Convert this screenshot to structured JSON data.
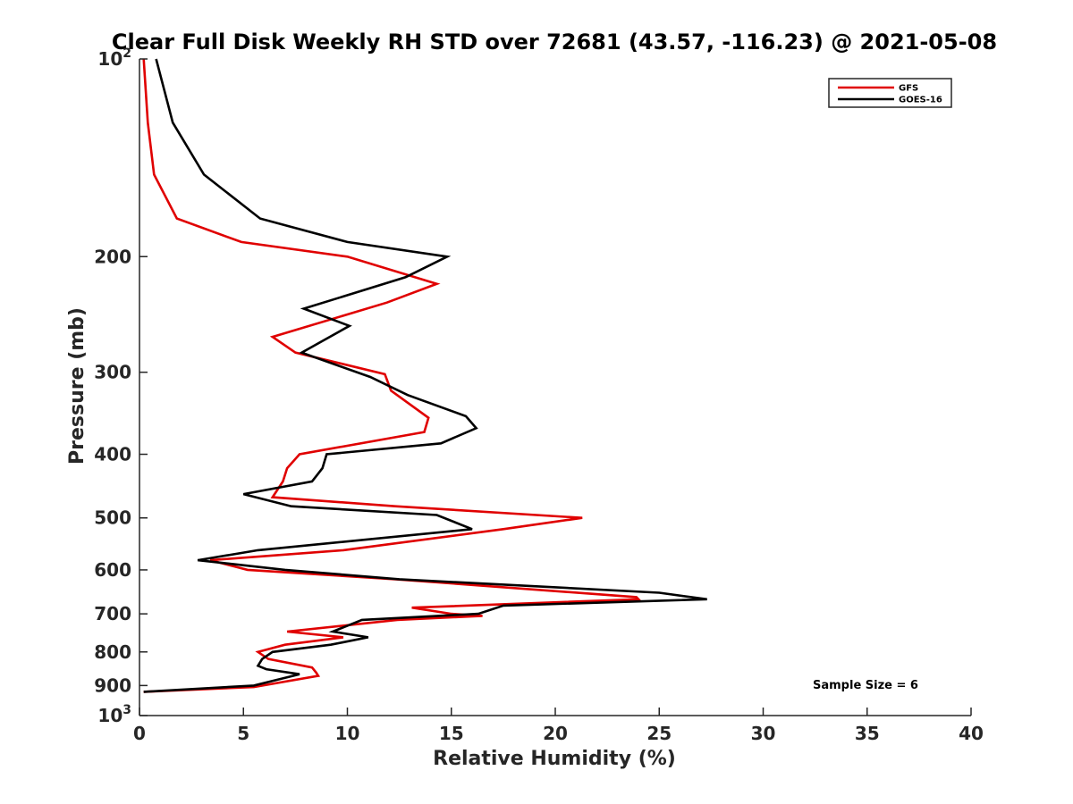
{
  "chart_data": {
    "type": "line",
    "title": "Clear Full Disk Weekly RH STD over 72681 (43.57, -116.23) @ 2021-05-08",
    "xlabel": "Relative Humidity (%)",
    "ylabel": "Pressure (mb)",
    "xlim": [
      0,
      40
    ],
    "ylim": [
      100,
      1000
    ],
    "yscale": "log",
    "y_reversed": true,
    "grid": false,
    "x_ticks": [
      "0",
      "5",
      "10",
      "15",
      "20",
      "25",
      "30",
      "35",
      "40"
    ],
    "y_ticks": [
      {
        "value": 100,
        "base": "10",
        "exp": "2"
      },
      {
        "value": 200,
        "label": "200"
      },
      {
        "value": 300,
        "label": "300"
      },
      {
        "value": 400,
        "label": "400"
      },
      {
        "value": 500,
        "label": "500"
      },
      {
        "value": 600,
        "label": "600"
      },
      {
        "value": 700,
        "label": "700"
      },
      {
        "value": 800,
        "label": "800"
      },
      {
        "value": 900,
        "label": "900"
      },
      {
        "value": 1000,
        "base": "10",
        "exp": "3"
      }
    ],
    "legend_position": "top-right",
    "annotation": "Sample Size = 6",
    "series": [
      {
        "name": "GFS",
        "color": "#e00000",
        "points": [
          [
            0.2,
            100
          ],
          [
            0.4,
            125
          ],
          [
            0.7,
            150
          ],
          [
            1.8,
            175
          ],
          [
            4.9,
            190
          ],
          [
            10.0,
            200
          ],
          [
            14.3,
            220
          ],
          [
            11.9,
            235
          ],
          [
            6.4,
            265
          ],
          [
            7.5,
            280
          ],
          [
            11.8,
            302
          ],
          [
            12.1,
            320
          ],
          [
            13.9,
            352
          ],
          [
            13.7,
            370
          ],
          [
            7.7,
            400
          ],
          [
            7.1,
            420
          ],
          [
            6.9,
            440
          ],
          [
            6.4,
            465
          ],
          [
            12.3,
            480
          ],
          [
            21.3,
            500
          ],
          [
            17.5,
            520
          ],
          [
            9.8,
            560
          ],
          [
            3.4,
            580
          ],
          [
            5.2,
            600
          ],
          [
            12.3,
            620
          ],
          [
            23.9,
            660
          ],
          [
            24.0,
            665
          ],
          [
            13.1,
            685
          ],
          [
            15.0,
            700
          ],
          [
            16.5,
            705
          ],
          [
            12.4,
            715
          ],
          [
            7.1,
            745
          ],
          [
            9.8,
            760
          ],
          [
            7.0,
            780
          ],
          [
            5.7,
            800
          ],
          [
            6.2,
            820
          ],
          [
            8.3,
            845
          ],
          [
            8.5,
            860
          ],
          [
            8.6,
            870
          ],
          [
            5.5,
            905
          ],
          [
            0.2,
            920
          ]
        ]
      },
      {
        "name": "GOES-16",
        "color": "#000000",
        "points": [
          [
            0.8,
            100
          ],
          [
            1.6,
            125
          ],
          [
            3.1,
            150
          ],
          [
            5.8,
            175
          ],
          [
            10.0,
            190
          ],
          [
            14.8,
            200
          ],
          [
            12.8,
            215
          ],
          [
            7.9,
            240
          ],
          [
            10.1,
            255
          ],
          [
            7.8,
            280
          ],
          [
            11.1,
            305
          ],
          [
            12.9,
            325
          ],
          [
            15.7,
            350
          ],
          [
            16.2,
            365
          ],
          [
            14.5,
            385
          ],
          [
            9.0,
            400
          ],
          [
            8.8,
            420
          ],
          [
            8.3,
            440
          ],
          [
            5.0,
            460
          ],
          [
            7.3,
            480
          ],
          [
            14.3,
            495
          ],
          [
            16.0,
            520
          ],
          [
            5.7,
            560
          ],
          [
            2.8,
            580
          ],
          [
            7.0,
            600
          ],
          [
            12.5,
            620
          ],
          [
            25.0,
            650
          ],
          [
            27.3,
            665
          ],
          [
            17.5,
            680
          ],
          [
            16.3,
            700
          ],
          [
            10.7,
            715
          ],
          [
            9.3,
            745
          ],
          [
            11.0,
            760
          ],
          [
            9.2,
            780
          ],
          [
            6.4,
            800
          ],
          [
            5.9,
            820
          ],
          [
            5.7,
            840
          ],
          [
            6.1,
            850
          ],
          [
            7.7,
            865
          ],
          [
            5.5,
            900
          ],
          [
            0.2,
            920
          ]
        ]
      }
    ]
  }
}
